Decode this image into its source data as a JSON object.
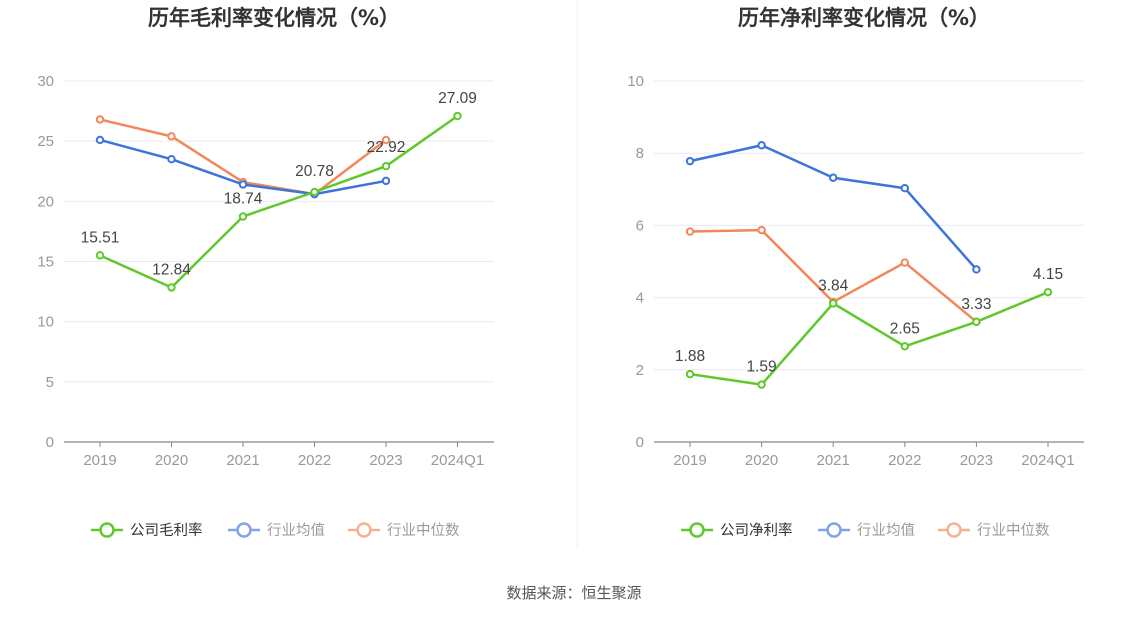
{
  "source": "数据来源：恒生聚源",
  "colors": {
    "company": "#5fc92c",
    "avg": "#3c74db",
    "median": "#f2885a",
    "grid": "#e8eaf3",
    "axis": "#888888",
    "tick_text": "#999999"
  },
  "chart_data": [
    {
      "type": "line",
      "title": "历年毛利率变化情况（%）",
      "categories": [
        "2019",
        "2020",
        "2021",
        "2022",
        "2023",
        "2024Q1"
      ],
      "ylim": [
        0,
        30
      ],
      "yticks": [
        0,
        5,
        10,
        15,
        20,
        25,
        30
      ],
      "grid": true,
      "legend_position": "bottom",
      "series": [
        {
          "name": "公司毛利率",
          "key": "company",
          "values": [
            15.51,
            12.84,
            18.74,
            20.78,
            22.92,
            27.09
          ],
          "labels": [
            "15.51",
            "12.84",
            "18.74",
            "20.78",
            "22.92",
            "27.09"
          ]
        },
        {
          "name": "行业均值",
          "key": "avg",
          "values": [
            25.1,
            23.5,
            21.4,
            20.6,
            21.7,
            null
          ]
        },
        {
          "name": "行业中位数",
          "key": "median",
          "values": [
            26.8,
            25.4,
            21.6,
            20.6,
            25.1,
            null
          ]
        }
      ]
    },
    {
      "type": "line",
      "title": "历年净利率变化情况（%）",
      "categories": [
        "2019",
        "2020",
        "2021",
        "2022",
        "2023",
        "2024Q1"
      ],
      "ylim": [
        0,
        10
      ],
      "yticks": [
        0,
        2,
        4,
        6,
        8,
        10
      ],
      "grid": true,
      "legend_position": "bottom",
      "series": [
        {
          "name": "公司净利率",
          "key": "company",
          "values": [
            1.88,
            1.59,
            3.84,
            2.65,
            3.33,
            4.15
          ],
          "labels": [
            "1.88",
            "1.59",
            "3.84",
            "2.65",
            "3.33",
            "4.15"
          ]
        },
        {
          "name": "行业均值",
          "key": "avg",
          "values": [
            7.78,
            8.22,
            7.32,
            7.03,
            4.78,
            null
          ]
        },
        {
          "name": "行业中位数",
          "key": "median",
          "values": [
            5.83,
            5.87,
            3.88,
            4.97,
            3.33,
            null
          ]
        }
      ]
    }
  ]
}
